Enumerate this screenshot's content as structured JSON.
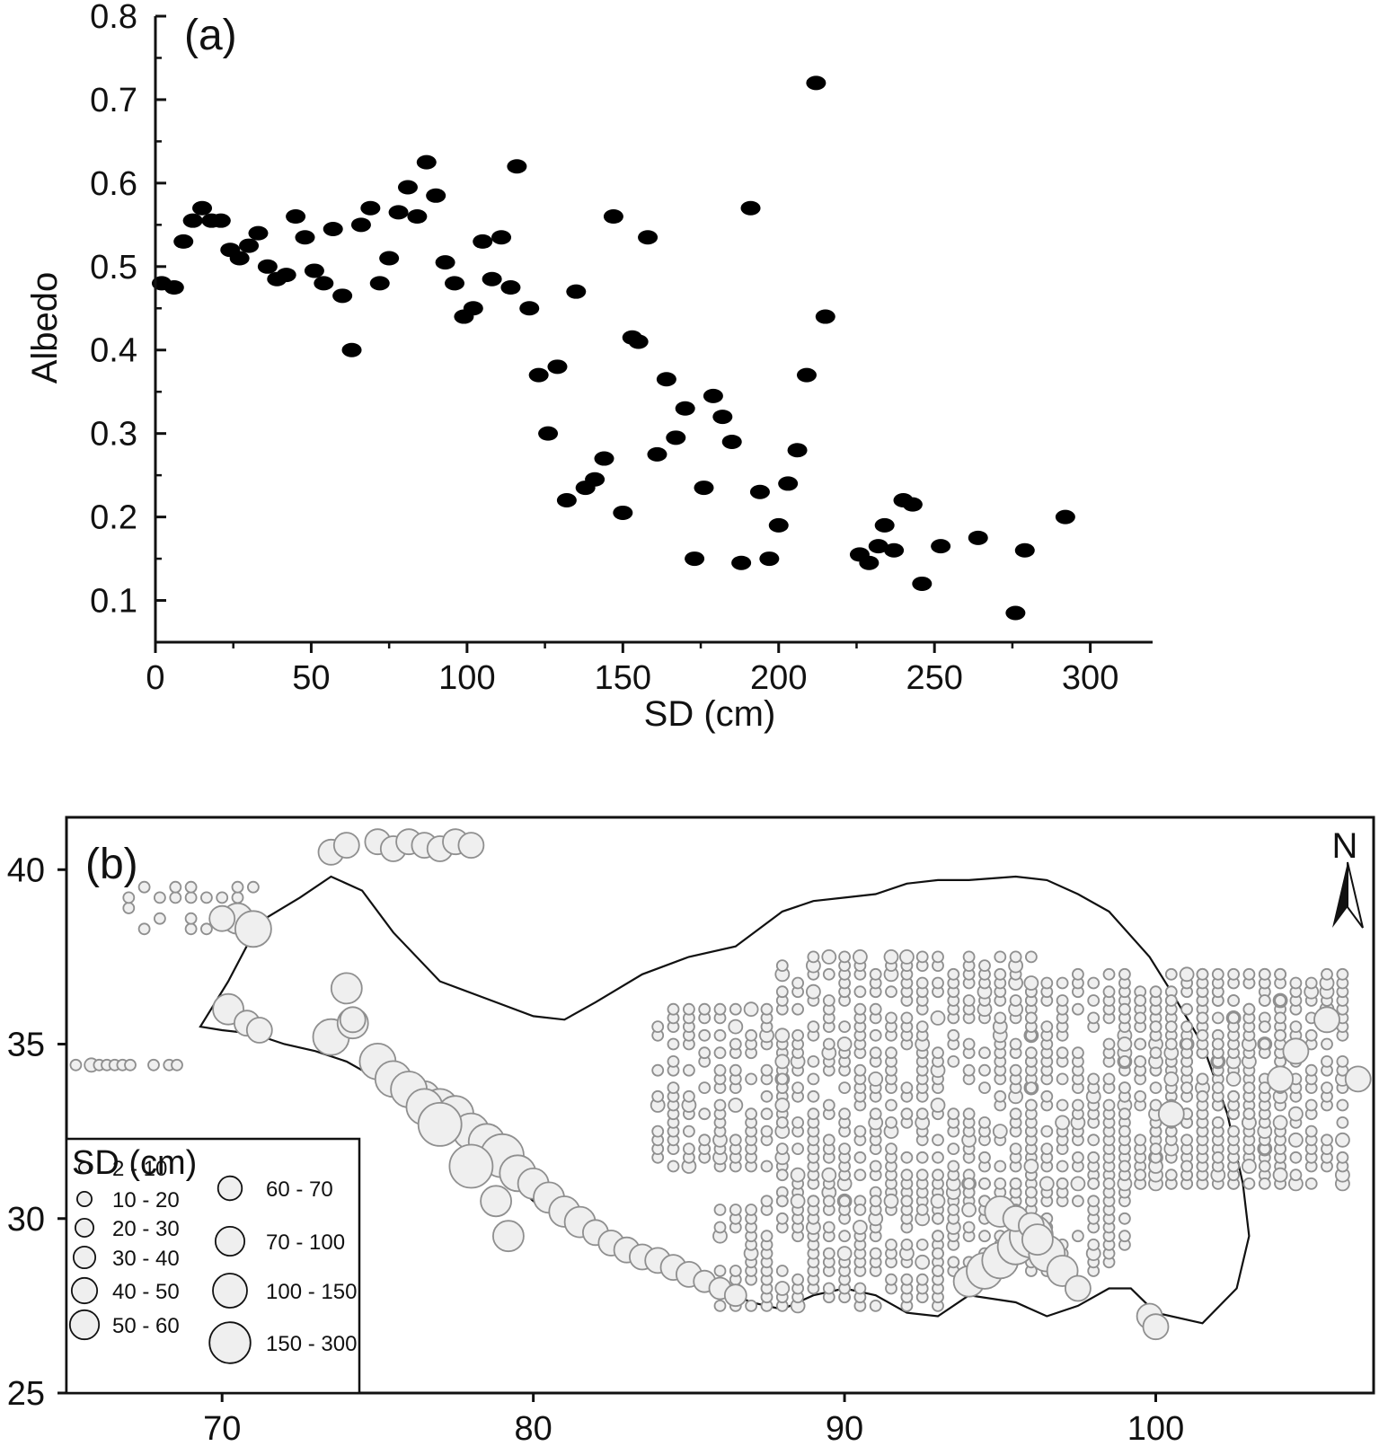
{
  "chart_data": [
    {
      "panel": "(a)",
      "type": "scatter",
      "title": "",
      "xlabel": "SD (cm)",
      "ylabel": "Albedo",
      "xlim": [
        0,
        320
      ],
      "ylim": [
        0.05,
        0.8
      ],
      "xticks": [
        "0",
        "50",
        "100",
        "150",
        "200",
        "250",
        "300"
      ],
      "yticks": [
        "0.1",
        "0.2",
        "0.3",
        "0.4",
        "0.5",
        "0.6",
        "0.7",
        "0.8"
      ],
      "marker_color": "#000000",
      "series": [
        {
          "x": [
            2,
            6,
            9,
            12,
            15,
            18,
            21,
            24,
            27,
            30,
            33,
            36,
            39,
            42,
            45,
            48,
            51,
            54,
            57,
            60,
            63,
            66,
            69,
            72,
            75,
            78,
            81,
            84,
            87,
            90,
            93,
            96,
            99,
            102,
            105,
            108,
            111,
            114,
            120,
            123,
            126,
            129,
            132,
            135,
            138,
            141,
            144,
            147,
            150,
            153,
            155,
            158,
            161,
            164,
            167,
            170,
            173,
            176,
            179,
            182,
            185,
            188,
            191,
            194,
            197,
            200,
            203,
            206,
            209,
            212,
            215,
            116,
            226,
            229,
            232,
            234,
            237,
            240,
            243,
            246,
            252,
            264,
            276,
            279,
            292
          ],
          "y": [
            0.48,
            0.475,
            0.53,
            0.555,
            0.57,
            0.555,
            0.555,
            0.52,
            0.51,
            0.525,
            0.54,
            0.5,
            0.485,
            0.49,
            0.56,
            0.535,
            0.495,
            0.48,
            0.545,
            0.465,
            0.4,
            0.55,
            0.57,
            0.48,
            0.51,
            0.565,
            0.595,
            0.56,
            0.625,
            0.585,
            0.505,
            0.48,
            0.44,
            0.45,
            0.53,
            0.485,
            0.535,
            0.475,
            0.45,
            0.37,
            0.3,
            0.38,
            0.22,
            0.47,
            0.235,
            0.245,
            0.27,
            0.56,
            0.205,
            0.415,
            0.41,
            0.535,
            0.275,
            0.365,
            0.295,
            0.33,
            0.15,
            0.235,
            0.345,
            0.32,
            0.29,
            0.145,
            0.57,
            0.23,
            0.15,
            0.19,
            0.24,
            0.28,
            0.37,
            0.72,
            0.44,
            0.62,
            0.155,
            0.145,
            0.165,
            0.19,
            0.16,
            0.22,
            0.215,
            0.12,
            0.165,
            0.175,
            0.085,
            0.16,
            0.2
          ]
        }
      ]
    },
    {
      "panel": "(b)",
      "type": "scatter",
      "title": "",
      "xlabel": "",
      "ylabel": "",
      "xlim": [
        65,
        107
      ],
      "ylim": [
        25,
        41.5
      ],
      "xticks": [
        "70",
        "80",
        "90",
        "100"
      ],
      "yticks": [
        "25",
        "30",
        "35",
        "40"
      ],
      "north_arrow": "N",
      "marker_fill": "#efefef",
      "marker_stroke": "#8f8f8f",
      "boundary_color": "#111111",
      "legend": {
        "title": "SD (cm)",
        "classes": [
          "2 - 10",
          "10 - 20",
          "20 - 30",
          "30 - 40",
          "40 - 50",
          "50 - 60",
          "60 - 70",
          "70 - 100",
          "100 - 150",
          "150 - 300"
        ]
      },
      "boundary": {
        "lon": [
          69.3,
          70.2,
          71.2,
          72.5,
          73.5,
          74.5,
          75.5,
          77,
          78.5,
          80,
          81,
          82,
          83.5,
          85,
          86.5,
          88,
          89,
          90,
          91,
          92,
          93,
          94,
          95.5,
          96.5,
          97.5,
          98.5,
          99.8,
          100.5,
          101.5,
          102.3,
          102.8,
          103,
          102.6,
          101.5,
          100,
          99.2,
          98.5,
          97.5,
          96.5,
          95.5,
          94,
          93,
          92,
          91,
          90,
          89,
          88,
          87,
          86,
          85,
          84,
          83,
          82,
          81,
          80,
          79,
          78,
          77,
          76,
          75,
          74,
          73,
          72,
          71,
          70,
          69.3
        ],
        "lat": [
          35.5,
          36.8,
          38.5,
          39.2,
          39.8,
          39.4,
          38.2,
          36.8,
          36.3,
          35.8,
          35.7,
          36.2,
          37.0,
          37.5,
          37.8,
          38.8,
          39.1,
          39.2,
          39.3,
          39.6,
          39.7,
          39.7,
          39.8,
          39.7,
          39.3,
          38.8,
          37.5,
          36.5,
          35.0,
          33.0,
          31.0,
          29.5,
          28.0,
          27.0,
          27.3,
          28.0,
          28.0,
          27.5,
          27.2,
          27.6,
          27.8,
          27.2,
          27.3,
          27.8,
          28.0,
          27.8,
          27.4,
          27.6,
          28.0,
          28.2,
          28.6,
          29.3,
          29.5,
          29.9,
          30.5,
          31.3,
          32.2,
          32.8,
          33.3,
          34.0,
          34.5,
          34.8,
          35.0,
          35.3,
          35.4,
          35.5
        ]
      },
      "grid_regions": [
        {
          "lon": [
            84,
            88
          ],
          "lat": [
            31.5,
            36
          ],
          "step": [
            0.5,
            0.25
          ],
          "size_class": 1
        },
        {
          "lon": [
            88,
            96
          ],
          "lat": [
            30.5,
            37.5
          ],
          "step": [
            0.5,
            0.25
          ],
          "size_class": 1
        },
        {
          "lon": [
            96,
            104
          ],
          "lat": [
            31,
            37
          ],
          "step": [
            0.5,
            0.25
          ],
          "size_class": 1
        },
        {
          "lon": [
            86,
            93
          ],
          "lat": [
            27.5,
            30.5
          ],
          "step": [
            0.5,
            0.25
          ],
          "size_class": 1
        },
        {
          "lon": [
            93,
            99
          ],
          "lat": [
            28.5,
            31
          ],
          "step": [
            0.5,
            0.25
          ],
          "size_class": 1
        },
        {
          "lon": [
            99,
            106
          ],
          "lat": [
            31,
            37
          ],
          "step": [
            0.5,
            0.25
          ],
          "size_class": 1
        },
        {
          "lon": [
            65.3,
            69
          ],
          "lat": [
            34.4,
            34.6
          ],
          "step": [
            0.25,
            0.25
          ],
          "size_class": 1
        },
        {
          "lon": [
            67,
            71
          ],
          "lat": [
            38.3,
            39.6
          ],
          "step": [
            0.5,
            0.3
          ],
          "size_class": 1
        }
      ],
      "big_points": {
        "lon": [
          76.5,
          77,
          77.5,
          78,
          78.5,
          79,
          79.5,
          80,
          80.5,
          81,
          81.5,
          82,
          82.5,
          83,
          83.5,
          84,
          84.5,
          85,
          85.5,
          86,
          86.5,
          75,
          75.5,
          76,
          76.5,
          77,
          78,
          78.8,
          79.2,
          74,
          73.5,
          74.2,
          70.2,
          70.5,
          71,
          70,
          70.8,
          71.2,
          74.2,
          75,
          75.5,
          76,
          76.5,
          77,
          77.5,
          78,
          73.5,
          74,
          94,
          94.5,
          95,
          95.5,
          96,
          96.5,
          97,
          97.5,
          95,
          95.5,
          96,
          99.8,
          100,
          96.2,
          100.5,
          104.5,
          104,
          106.5,
          105.5
        ],
        "lat": [
          33.5,
          33.2,
          33,
          32.5,
          32.2,
          31.8,
          31.3,
          31,
          30.6,
          30.2,
          29.9,
          29.6,
          29.3,
          29.1,
          28.9,
          28.8,
          28.6,
          28.4,
          28.2,
          28,
          27.8,
          34.5,
          34,
          33.7,
          33.2,
          32.7,
          31.5,
          30.5,
          29.5,
          36.6,
          35.2,
          35.6,
          36,
          38.6,
          38.3,
          38.6,
          35.6,
          35.4,
          35.7,
          40.8,
          40.6,
          40.8,
          40.7,
          40.6,
          40.8,
          40.7,
          40.5,
          40.7,
          28.2,
          28.5,
          28.8,
          29.2,
          29.5,
          29,
          28.5,
          28,
          30.2,
          30,
          29.8,
          27.2,
          26.9,
          29.4,
          33,
          34.8,
          34,
          34,
          35.7
        ],
        "size_class": [
          7,
          8,
          8,
          8,
          8,
          9,
          8,
          7,
          7,
          7,
          7,
          6,
          6,
          6,
          6,
          6,
          6,
          6,
          5,
          5,
          5,
          8,
          8,
          8,
          8,
          9,
          9,
          7,
          7,
          7,
          8,
          7,
          7,
          7,
          8,
          6,
          6,
          6,
          6,
          6,
          6,
          6,
          6,
          6,
          6,
          6,
          6,
          6,
          7,
          8,
          8,
          8,
          9,
          8,
          7,
          6,
          7,
          6,
          6,
          6,
          6,
          7,
          6,
          6,
          6,
          6,
          6
        ]
      }
    }
  ]
}
